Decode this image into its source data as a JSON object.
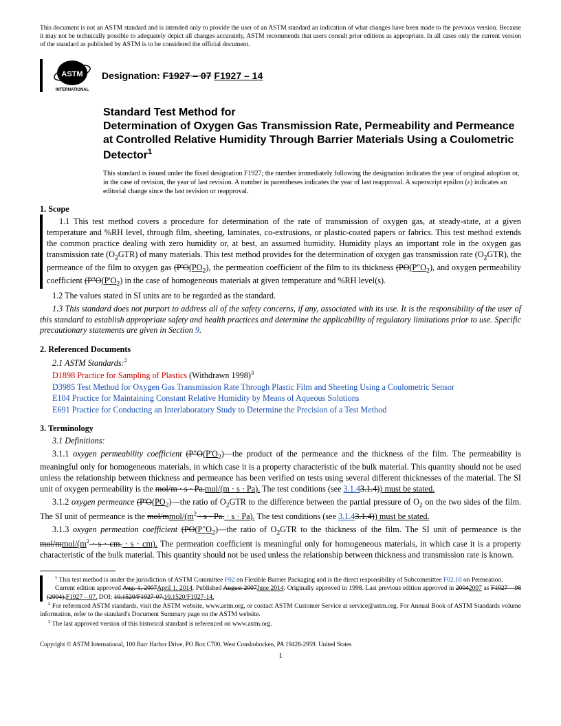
{
  "disclaimer": "This document is not an ASTM standard and is intended only to provide the user of an ASTM standard an indication of what changes have been made to the previous version. Because it may not be technically possible to adequately depict all changes accurately, ASTM recommends that users consult prior editions as appropriate. In all cases only the current version of the standard as published by ASTM is to be considered the official document.",
  "designation_label": "Designation: ",
  "designation_old": "F1927 – 07",
  "designation_new": "F1927 – 14",
  "title_line1": "Standard Test Method for",
  "title_line2": "Determination of Oxygen Gas Transmission Rate, Permeability and Permeance at Controlled Relative Humidity Through Barrier Materials Using a Coulometric Detector",
  "title_sup": "1",
  "issued": "This standard is issued under the fixed designation F1927; the number immediately following the designation indicates the year of original adoption or, in the case of revision, the year of last revision. A number in parentheses indicates the year of last reapproval. A superscript epsilon (ε) indicates an editorial change since the last revision or reapproval.",
  "s1_head": "1.  Scope",
  "s1_1_a": "1.1  This test method covers a procedure for determination of the rate of transmission of oxygen gas, at steady-state, at a given temperature and %RH level, through film, sheeting, laminates, co-extrusions, or plastic-coated papers or fabrics. This test method extends the common practice dealing with zero humidity or, at best, an assumed humidity. Humidity plays an important role in the oxygen gas transmission rate (O",
  "s1_1_b": "GTR) of many materials. This test method provides for the determination of oxygen gas transmission rate (O",
  "s1_1_c": "GTR), the permeance of the film to oxygen gas ",
  "s1_1_perm_old": "(P'O",
  "s1_1_perm_new": "(PO",
  "s1_1_d": "), the permeation coefficient of the film to its thickness ",
  "s1_1_pc_old": "(PO",
  "s1_1_pc_new": "(P\"O",
  "s1_1_e": "), and oxygen permeability coefficient ",
  "s1_1_co_old": "(P\"O",
  "s1_1_co_new": "(P'O",
  "s1_1_f": ") in the case of homogeneous materials at given temperature and %RH level(s).",
  "s1_2": "1.2  The values stated in SI units are to be regarded as the standard.",
  "s1_3": "1.3  This standard does not purport to address all of the safety concerns, if any, associated with its use. It is the responsibility of the user of this standard to establish appropriate safety and health practices and determine the applicability of regulatory limitations prior to use. Specific precautionary statements are given in Section ",
  "s1_3_link": "9",
  "s1_3_end": ".",
  "s2_head": "2.  Referenced Documents",
  "s2_1": "2.1  ASTM Standards:",
  "s2_sup": "2",
  "refs": [
    {
      "code": "D1898",
      "title": " Practice for Sampling of Plastics",
      "suffix": " (Withdrawn 1998)",
      "suffix_sup": "3",
      "red": true
    },
    {
      "code": "D3985",
      "title": " Test Method for Oxygen Gas Transmission Rate Through Plastic Film and Sheeting Using a Coulometric Sensor",
      "suffix": "",
      "red": false
    },
    {
      "code": "E104",
      "title": " Practice for Maintaining Constant Relative Humidity by Means of Aqueous Solutions",
      "suffix": "",
      "red": false
    },
    {
      "code": "E691",
      "title": " Practice for Conducting an Interlaboratory Study to Determine the Precision of a Test Method",
      "suffix": "",
      "red": false
    }
  ],
  "s3_head": "3.  Terminology",
  "s3_1": "3.1  Definitions:",
  "s311_a": "3.1.1  ",
  "s311_term": "oxygen permeability coefficient ",
  "s311_old": "(P\"O",
  "s311_new": "(P'O",
  "s311_b": ")—the product of the permeance and the thickness of the film. The permeability is meaningful only for homogeneous materials, in which case it is a property characteristic of the bulk material. This quantity should not be used unless the relationship between thickness and permeance has been verified on tests using several different thicknesses of the material. The SI unit of oxygen permeability is the ",
  "s311_unit_old": "mol/m · s · Pa.",
  "s311_unit_new": "mol/(m · s · Pa).",
  "s311_c": " The test conditions (see ",
  "s311_link_new": "3.1.4",
  "s311_link_old": "3.1.4)",
  "s311_end": ") must be stated.",
  "s312_a": "3.1.2  ",
  "s312_term": "oxygen permeance ",
  "s312_old": "(P'O",
  "s312_new": "(PO",
  "s312_b": ")—the ratio of O",
  "s312_c": "GTR to the difference between the partial pressure of O",
  "s312_d": " on the two sides of the film. The SI unit of permeance is the ",
  "s312_unit_old": "mol/m",
  "s312_unit_new": "mol/(m",
  "s312_unit_old2": " · s · Pa.",
  "s312_unit_new2": " · s · Pa).",
  "s312_e": " The test conditions (see ",
  "s312_link_new": "3.1.4",
  "s312_link_old": "3.1.4)",
  "s312_end": ") must be stated.",
  "s313_a": "3.1.3  ",
  "s313_term": "oxygen permeation coefficient ",
  "s313_old": "(PO",
  "s313_new": "(P\"O",
  "s313_b": ")—the ratio of O",
  "s313_c": "GTR to the thickness of the film. The SI unit of permeance is the ",
  "s313_unit_old": "mol/m",
  "s313_unit_new": "mol/(m",
  "s313_unit_old2": " · s · cm.",
  "s313_unit_new2": " · s · cm).",
  "s313_d": " The permeation coefficient is meaningful only for homogeneous materials, in which case it is a property characteristic of the bulk material. This quantity should not be used unless the relationship between thickness and transmission rate is known.",
  "fn1_a": " This test method is under the jurisdiction of ASTM Committee ",
  "fn1_link1": "F02",
  "fn1_b": " on Flexible Barrier Packaging and is the direct responsibility of Subcommittee ",
  "fn1_link2": "F02.10",
  "fn1_c": " on Permeation.",
  "fn1_line2a": "Current edition approved ",
  "fn1_old1": "Aug. 1, 2007",
  "fn1_new1": "April 1, 2014",
  "fn1_line2b": ". Published ",
  "fn1_old2": "August 2007",
  "fn1_new2": "June 2014",
  "fn1_line2c": ". Originally approved in 1998. Last previous edition approved in ",
  "fn1_old3": "2004",
  "fn1_new3": "2007",
  "fn1_line2d": " as ",
  "fn1_old4": "F1927 – 98 (2004).",
  "fn1_new4": "F1927 – 07.",
  "fn1_line2e": " DOI: ",
  "fn1_old5": "10.1520/F1927-07.",
  "fn1_new5": "10.1520/F1927-14.",
  "fn2": " For referenced ASTM standards, visit the ASTM website, www.astm.org, or contact ASTM Customer Service at service@astm.org. For Annual Book of ASTM Standards volume information, refer to the standard's Document Summary page on the ASTM website.",
  "fn3": " The last approved version of this historical standard is referenced on www.astm.org.",
  "copyright": "Copyright © ASTM International, 100 Barr Harbor Drive, PO Box C700, West Conshohocken, PA 19428-2959. United States",
  "pagenum": "1",
  "logo_text": "INTERNATIONAL"
}
